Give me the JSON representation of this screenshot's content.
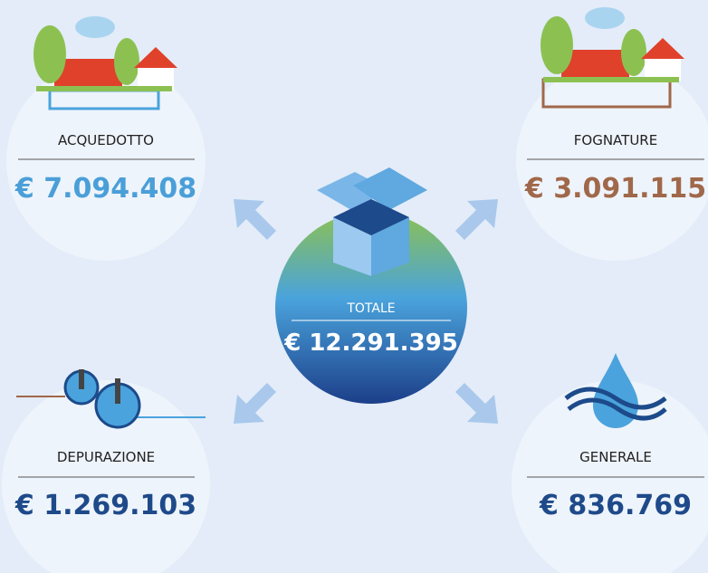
{
  "nodes": [
    {
      "label": "ACQUEDOTTO",
      "amount": "€ 7.094.408"
    },
    {
      "label": "FOGNATURE",
      "amount": "€ 3.091.115"
    },
    {
      "label": "DEPURAZIONE",
      "amount": "€ 1.269.103"
    },
    {
      "label": "GENERALE",
      "amount": "€ 836.769"
    }
  ],
  "total": {
    "label": "TOTALE",
    "amount": "€ 12.291.395"
  }
}
